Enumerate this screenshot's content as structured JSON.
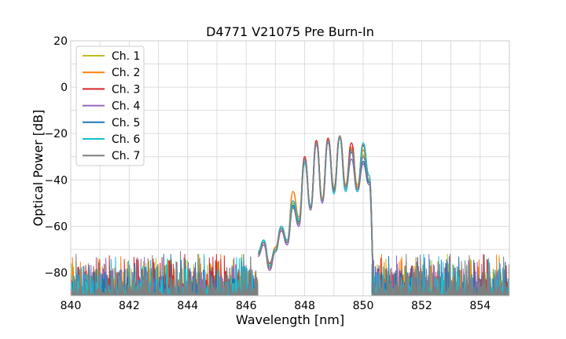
{
  "chart_data": {
    "type": "line",
    "title": "D4771 V21075 Pre Burn-In",
    "xlabel": "Wavelength [nm]",
    "ylabel": "Optical Power [dB]",
    "xlim": [
      840,
      855
    ],
    "ylim": [
      -90,
      20
    ],
    "xticks": [
      "840",
      "842",
      "844",
      "846",
      "848",
      "850",
      "852",
      "854"
    ],
    "yticks": [
      "20",
      "0",
      "−20",
      "−40",
      "−60",
      "−80"
    ],
    "grid": true,
    "legend_position": "top-left",
    "noise_floor": {
      "x_range": [
        840,
        846.4
      ],
      "x_range_right": [
        850.3,
        855
      ],
      "y_range": [
        -90,
        -72
      ]
    },
    "series": [
      {
        "name": "Ch. 1",
        "color": "#bcbd22",
        "x": [
          846.4,
          846.6,
          846.8,
          847.0,
          847.2,
          847.4,
          847.6,
          847.8,
          848.0,
          848.2,
          848.4,
          848.6,
          848.8,
          849.0,
          849.2,
          849.4,
          849.6,
          849.8,
          850.0,
          850.2,
          850.4
        ],
        "y": [
          -72,
          -67,
          -76,
          -70,
          -61,
          -67,
          -50,
          -58,
          -32,
          -52,
          -24,
          -48,
          -23,
          -43,
          -22,
          -42,
          -26,
          -42,
          -29,
          -40,
          -90
        ]
      },
      {
        "name": "Ch. 2",
        "color": "#ff7f0e",
        "x": [
          846.4,
          846.6,
          846.8,
          847.0,
          847.2,
          847.4,
          847.6,
          847.8,
          848.0,
          848.2,
          848.4,
          848.6,
          848.8,
          849.0,
          849.2,
          849.4,
          849.6,
          849.8,
          850.0,
          850.2,
          850.4
        ],
        "y": [
          -72,
          -66,
          -77,
          -69,
          -60,
          -66,
          -45,
          -56,
          -31,
          -52,
          -23,
          -48,
          -23,
          -44,
          -21,
          -42,
          -26,
          -43,
          -27,
          -38,
          -90
        ]
      },
      {
        "name": "Ch. 3",
        "color": "#d62728",
        "x": [
          846.4,
          846.6,
          846.8,
          847.0,
          847.2,
          847.4,
          847.6,
          847.8,
          848.0,
          848.2,
          848.4,
          848.6,
          848.8,
          849.0,
          849.2,
          849.4,
          849.6,
          849.8,
          850.0,
          850.2,
          850.4
        ],
        "y": [
          -72,
          -67,
          -76,
          -70,
          -61,
          -67,
          -51,
          -59,
          -30,
          -52,
          -23,
          -49,
          -22,
          -44,
          -21,
          -43,
          -24,
          -44,
          -25,
          -38,
          -90
        ]
      },
      {
        "name": "Ch. 4",
        "color": "#9467bd",
        "x": [
          846.4,
          846.6,
          846.8,
          847.0,
          847.2,
          847.4,
          847.6,
          847.8,
          848.0,
          848.2,
          848.4,
          848.6,
          848.8,
          849.0,
          849.2,
          849.4,
          849.6,
          849.8,
          850.0,
          850.2,
          850.4
        ],
        "y": [
          -73,
          -68,
          -79,
          -71,
          -62,
          -68,
          -52,
          -60,
          -32,
          -53,
          -25,
          -50,
          -24,
          -45,
          -22,
          -44,
          -31,
          -45,
          -33,
          -42,
          -90
        ]
      },
      {
        "name": "Ch. 5",
        "color": "#1f77b4",
        "x": [
          846.4,
          846.6,
          846.8,
          847.0,
          847.2,
          847.4,
          847.6,
          847.8,
          848.0,
          848.2,
          848.4,
          848.6,
          848.8,
          849.0,
          849.2,
          849.4,
          849.6,
          849.8,
          850.0,
          850.2,
          850.4
        ],
        "y": [
          -72,
          -66,
          -78,
          -70,
          -61,
          -67,
          -51,
          -58,
          -31,
          -52,
          -24,
          -49,
          -23,
          -44,
          -22,
          -43,
          -28,
          -44,
          -32,
          -41,
          -90
        ]
      },
      {
        "name": "Ch. 6",
        "color": "#17becf",
        "x": [
          846.4,
          846.6,
          846.8,
          847.0,
          847.2,
          847.4,
          847.6,
          847.8,
          848.0,
          848.2,
          848.4,
          848.6,
          848.8,
          849.0,
          849.2,
          849.4,
          849.6,
          849.8,
          850.0,
          850.2,
          850.4
        ],
        "y": [
          -71,
          -66,
          -77,
          -70,
          -60,
          -66,
          -49,
          -57,
          -33,
          -51,
          -24,
          -49,
          -23,
          -46,
          -22,
          -45,
          -27,
          -45,
          -24,
          -38,
          -90
        ]
      },
      {
        "name": "Ch. 7",
        "color": "#7f7f7f",
        "x": [
          846.4,
          846.6,
          846.8,
          847.0,
          847.2,
          847.4,
          847.6,
          847.8,
          848.0,
          848.2,
          848.4,
          848.6,
          848.8,
          849.0,
          849.2,
          849.4,
          849.6,
          849.8,
          850.0,
          850.2,
          850.4
        ],
        "y": [
          -72,
          -67,
          -78,
          -71,
          -61,
          -67,
          -52,
          -59,
          -31,
          -52,
          -24,
          -49,
          -23,
          -45,
          -21,
          -43,
          -27,
          -44,
          -30,
          -40,
          -90
        ]
      }
    ]
  }
}
